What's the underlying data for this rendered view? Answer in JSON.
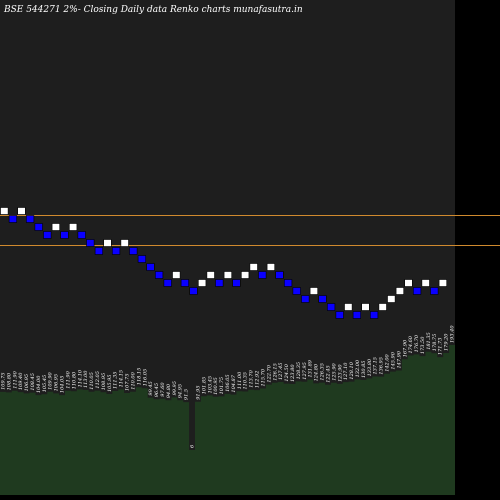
{
  "title": "BSE 544271 2%-  Closing Daily data  Renko  charts munafasutra.in",
  "colors": {
    "background": "#000000",
    "panel": "#1e1e1e",
    "brick_up": "#ffffff",
    "brick_down": "#0a00ff",
    "brick_outline": "#000000",
    "level_line": "#d08a2e",
    "volume_fill": "#1f3a1f",
    "text": "#ffffff"
  },
  "chart_data": {
    "type": "renko",
    "brick_directions": [
      "up",
      "down",
      "up",
      "down",
      "down",
      "down",
      "up",
      "down",
      "up",
      "down",
      "down",
      "down",
      "up",
      "down",
      "up",
      "down",
      "down",
      "down",
      "down",
      "down",
      "up",
      "down",
      "down",
      "up",
      "up",
      "down",
      "up",
      "down",
      "up",
      "up",
      "down",
      "up",
      "down",
      "down",
      "down",
      "down",
      "up",
      "down",
      "down",
      "down",
      "up",
      "down",
      "up",
      "down",
      "up",
      "up",
      "up",
      "up",
      "down",
      "up",
      "down",
      "up"
    ],
    "horizontal_levels": [
      "upper",
      "lower"
    ],
    "volume_labels": [
      "109.75",
      "108.80",
      "111.90",
      "109.40",
      "106.95",
      "108.45",
      "104.00",
      "105.45",
      "109.90",
      "106.95",
      "104.05",
      "111.90",
      "110.80",
      "114.10",
      "113.00",
      "110.05",
      "112.05",
      "108.95",
      "105.95",
      "111.35",
      "114.15",
      "107.75",
      "110.00",
      "118.15",
      "116.05",
      "99.45",
      "96.45",
      "97.60",
      "94.80",
      "99.95",
      "94.95",
      "91.5",
      "6",
      "91.95",
      "101.85",
      "103.45",
      "100.95",
      "101.75",
      "106.05",
      "104.87",
      "111.00",
      "110.35",
      "113.70",
      "112.92",
      "115.70",
      "122.70",
      "126.15",
      "127.45",
      "124.50",
      "123.80",
      "128.35",
      "127.95",
      "131.89",
      "124.80",
      "126.35",
      "122.45",
      "125.90",
      "123.90",
      "127.10",
      "128.10",
      "132.00",
      "130.85",
      "133.80",
      "137.15",
      "136.95",
      "142.00",
      "145.90",
      "147.90",
      "167.90",
      "174.60",
      "176.70",
      "173.50",
      "181.35",
      "178.75",
      "171.73",
      "179.20",
      "193.40"
    ]
  }
}
